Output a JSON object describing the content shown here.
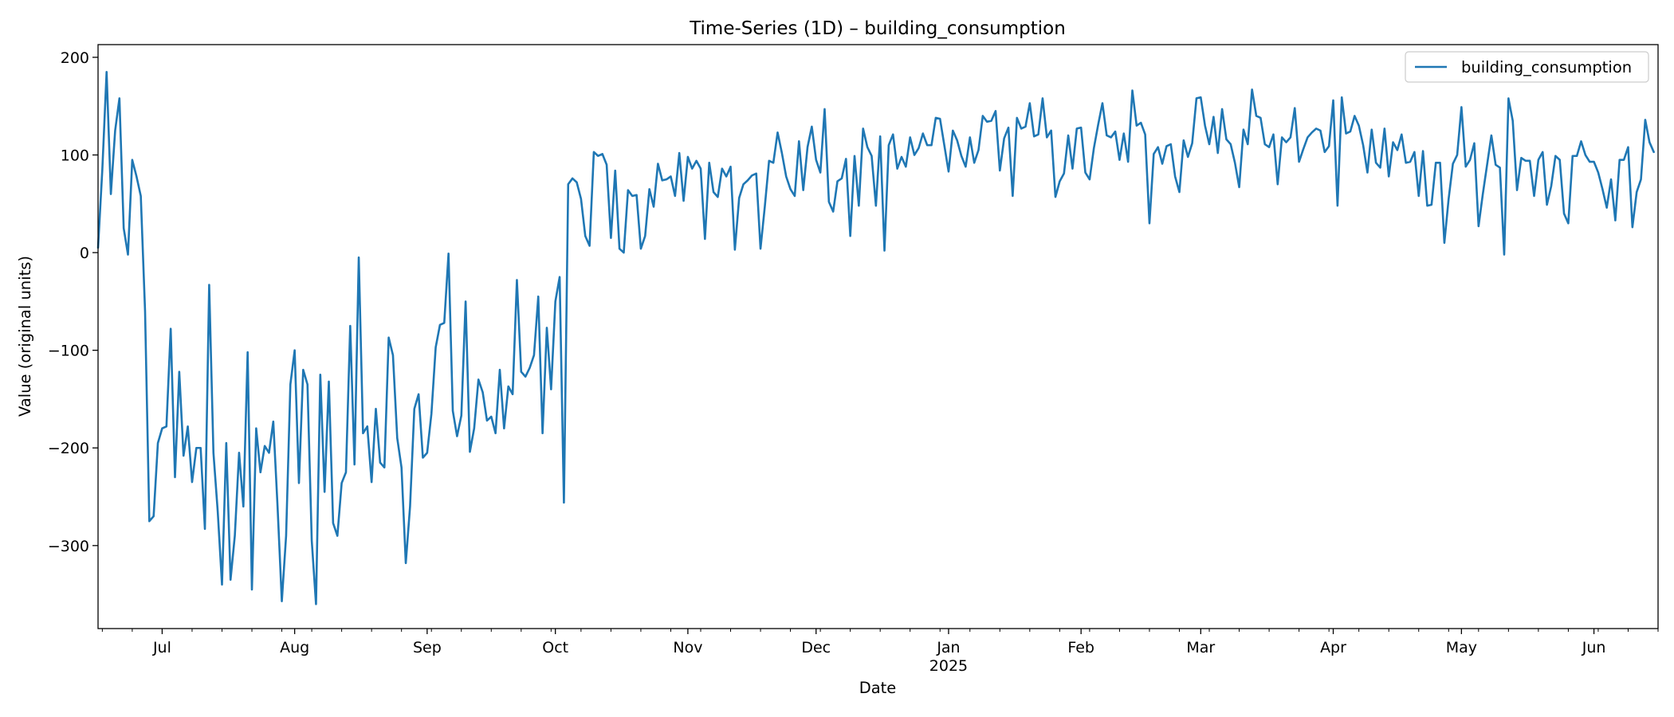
{
  "chart_data": {
    "type": "line",
    "title": "Time-Series (1D) – building_consumption",
    "xlabel": "Date",
    "ylabel": "Value (original units)",
    "xlim": [
      "2024-06-16",
      "2025-06-16"
    ],
    "ylim": [
      -385,
      213
    ],
    "x_ticks": [
      {
        "date": "2024-07-01",
        "label": "Jul"
      },
      {
        "date": "2024-08-01",
        "label": "Aug"
      },
      {
        "date": "2024-09-01",
        "label": "Sep"
      },
      {
        "date": "2024-10-01",
        "label": "Oct"
      },
      {
        "date": "2024-11-01",
        "label": "Nov"
      },
      {
        "date": "2024-12-01",
        "label": "Dec"
      },
      {
        "date": "2025-01-01",
        "label": "Jan",
        "sublabel": "2025"
      },
      {
        "date": "2025-02-01",
        "label": "Feb"
      },
      {
        "date": "2025-03-01",
        "label": "Mar"
      },
      {
        "date": "2025-04-01",
        "label": "Apr"
      },
      {
        "date": "2025-05-01",
        "label": "May"
      },
      {
        "date": "2025-06-01",
        "label": "Jun"
      }
    ],
    "y_ticks": [
      200,
      100,
      0,
      -100,
      -200,
      -300
    ],
    "y_tick_labels": [
      "200",
      "100",
      "0",
      "−100",
      "−200",
      "−300"
    ],
    "grid": false,
    "legend": {
      "position": "top-right",
      "entries": [
        "building_consumption"
      ]
    },
    "series": [
      {
        "name": "building_consumption",
        "color": "#1f77b4",
        "start_date": "2024-06-16",
        "step": "1D",
        "values": [
          5,
          85,
          185,
          60,
          125,
          158,
          25,
          -2,
          95,
          78,
          58,
          -60,
          -275,
          -270,
          -195,
          -180,
          -178,
          -78,
          -230,
          -122,
          -208,
          -178,
          -235,
          -200,
          -200,
          -283,
          -33,
          -205,
          -265,
          -340,
          -195,
          -335,
          -290,
          -205,
          -260,
          -102,
          -345,
          -180,
          -225,
          -198,
          -205,
          -173,
          -260,
          -357,
          -290,
          -135,
          -100,
          -236,
          -120,
          -135,
          -295,
          -360,
          -125,
          -245,
          -132,
          -277,
          -290,
          -236,
          -225,
          -75,
          -217,
          -5,
          -185,
          -178,
          -235,
          -160,
          -215,
          -220,
          -87,
          -105,
          -190,
          -220,
          -318,
          -260,
          -160,
          -145,
          -210,
          -205,
          -165,
          -97,
          -74,
          -72,
          -1,
          -162,
          -188,
          -167,
          -50,
          -204,
          -180,
          -130,
          -143,
          -172,
          -168,
          -185,
          -120,
          -180,
          -137,
          -145,
          -28,
          -122,
          -127,
          -118,
          -105,
          -45,
          -185,
          -77,
          -140,
          -50,
          -25,
          -256,
          70,
          76,
          72,
          55,
          17,
          7,
          103,
          99,
          101,
          90,
          15,
          84,
          4,
          0,
          64,
          58,
          59,
          4,
          17,
          65,
          47,
          91,
          74,
          75,
          78,
          58,
          102,
          53,
          98,
          86,
          94,
          86,
          14,
          92,
          62,
          57,
          86,
          78,
          88,
          3,
          56,
          70,
          74,
          79,
          81,
          4,
          47,
          94,
          92,
          123,
          102,
          78,
          65,
          58,
          114,
          64,
          108,
          129,
          95,
          82,
          147,
          52,
          42,
          73,
          76,
          96,
          17,
          99,
          48,
          127,
          108,
          99,
          48,
          119,
          2,
          110,
          121,
          86,
          98,
          88,
          118,
          100,
          107,
          122,
          110,
          110,
          138,
          137,
          110,
          83,
          125,
          115,
          99,
          88,
          118,
          92,
          105,
          140,
          134,
          135,
          145,
          84,
          117,
          128,
          58,
          138,
          127,
          129,
          153,
          119,
          121,
          158,
          118,
          125,
          57,
          73,
          81,
          120,
          86,
          127,
          128,
          82,
          75,
          107,
          131,
          153,
          120,
          118,
          124,
          95,
          122,
          93,
          166,
          130,
          133,
          121,
          30,
          101,
          108,
          91,
          109,
          111,
          78,
          62,
          115,
          98,
          112,
          158,
          159,
          130,
          111,
          139,
          102,
          147,
          116,
          111,
          92,
          67,
          126,
          111,
          167,
          140,
          138,
          111,
          108,
          121,
          70,
          118,
          113,
          118,
          148,
          93,
          106,
          118,
          123,
          127,
          125,
          103,
          109,
          156,
          48,
          159,
          122,
          124,
          140,
          130,
          110,
          82,
          126,
          92,
          87,
          127,
          78,
          113,
          105,
          121,
          92,
          93,
          103,
          58,
          104,
          48,
          49,
          92,
          92,
          10,
          55,
          91,
          100,
          149,
          88,
          95,
          112,
          27,
          60,
          90,
          120,
          90,
          87,
          -2,
          158,
          135,
          64,
          97,
          94,
          94,
          58,
          95,
          103,
          49,
          68,
          99,
          95,
          40,
          30,
          99,
          99,
          114,
          100,
          93,
          93,
          82,
          65,
          46,
          75,
          33,
          95,
          95,
          108,
          26,
          62,
          75,
          136,
          113,
          103
        ]
      }
    ]
  }
}
